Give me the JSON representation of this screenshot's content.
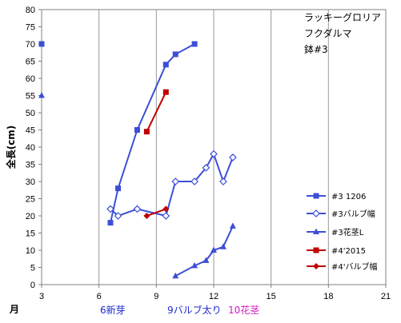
{
  "chart_data": {
    "type": "line",
    "title_lines": [
      "ラッキーグロリア",
      "フクダルマ",
      "鉢#3"
    ],
    "ylabel": "全長(cm)",
    "xlabel": "月",
    "xlim": [
      3,
      21
    ],
    "ylim": [
      0,
      80
    ],
    "x_ticks": [
      3,
      6,
      9,
      12,
      15,
      18,
      21
    ],
    "y_ticks": [
      0,
      5,
      10,
      15,
      20,
      25,
      30,
      35,
      40,
      45,
      50,
      55,
      60,
      65,
      70,
      75,
      80
    ],
    "grid": "vertical",
    "legend_position": "right",
    "series": [
      {
        "name": "#3 1206",
        "color": "#3c4fd6",
        "marker": "square",
        "segments": [
          [
            [
              3,
              70
            ]
          ],
          [
            [
              6.6,
              18
            ],
            [
              7,
              28
            ],
            [
              8,
              45
            ],
            [
              9.5,
              64
            ],
            [
              10,
              67
            ],
            [
              11,
              70
            ]
          ]
        ]
      },
      {
        "name": "#3バルブ幅",
        "color": "#3c4fd6",
        "marker": "diamond-open",
        "segments": [
          [
            [
              6.6,
              22
            ],
            [
              7,
              20
            ],
            [
              8,
              22
            ],
            [
              9.5,
              20
            ],
            [
              10,
              30
            ],
            [
              11,
              30
            ],
            [
              11.6,
              34
            ],
            [
              12,
              38
            ],
            [
              12.5,
              30
            ],
            [
              13,
              37
            ]
          ]
        ]
      },
      {
        "name": "#3花茎L",
        "color": "#3c4fd6",
        "marker": "triangle",
        "segments": [
          [
            [
              3,
              55
            ]
          ],
          [
            [
              10,
              2.5
            ],
            [
              11,
              5.5
            ],
            [
              11.6,
              7
            ],
            [
              12,
              10
            ],
            [
              12.5,
              11
            ],
            [
              13,
              17
            ]
          ]
        ]
      },
      {
        "name": "#4'2015",
        "color": "#c00000",
        "marker": "square",
        "segments": [
          [
            [
              8.5,
              44.5
            ],
            [
              9.5,
              56
            ]
          ]
        ]
      },
      {
        "name": "#4'バルブ幅",
        "color": "#c00000",
        "marker": "diamond",
        "segments": [
          [
            [
              8.5,
              20
            ],
            [
              9.5,
              22
            ]
          ]
        ]
      }
    ],
    "annotations": [
      {
        "text": "6新芽",
        "color": "#1d2bd1"
      },
      {
        "text": "9バルブ太り",
        "color": "#1d2bd1"
      },
      {
        "text": "10花茎",
        "color": "#d01ec2"
      }
    ]
  }
}
